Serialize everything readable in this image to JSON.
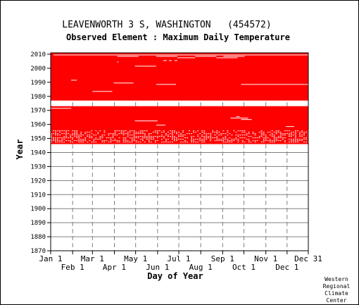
{
  "chart_data": {
    "type": "heatmap",
    "title": "LEAVENWORTH 3 S, WASHINGTON   (454572)",
    "subtitle": "Observed Element : Maximum Daily Temperature",
    "xlabel": "Day of Year",
    "ylabel": "Year",
    "x_ticks_top_row": [
      "Jan 1",
      "Mar 1",
      "May 1",
      "Jul 1",
      "Sep 1",
      "Nov 1",
      "Dec 31"
    ],
    "x_ticks_bottom_row": [
      "Feb 1",
      "Apr 1",
      "Jun 1",
      "Aug 1",
      "Oct 1",
      "Dec 1"
    ],
    "x_tick_days_top": [
      1,
      60,
      121,
      182,
      244,
      305,
      365
    ],
    "x_tick_days_bottom": [
      32,
      91,
      152,
      213,
      274,
      335
    ],
    "y_ticks": [
      1870,
      1880,
      1890,
      1900,
      1910,
      1920,
      1930,
      1940,
      1950,
      1960,
      1970,
      1980,
      1990,
      2000,
      2010
    ],
    "xlim": [
      1,
      365
    ],
    "ylim": [
      1870,
      2011
    ],
    "grid": true,
    "data_color": "#ff0000",
    "data_periods": [
      {
        "start_year": 1947,
        "end_year": 1973
      },
      {
        "start_year": 1978,
        "end_year": 2011
      }
    ],
    "missing_segments": [
      {
        "year": 2010,
        "start_day": 5,
        "end_day": 365
      },
      {
        "year": 2009,
        "start_day": 95,
        "end_day": 125
      },
      {
        "year": 2009,
        "start_day": 150,
        "end_day": 180
      },
      {
        "year": 2009,
        "start_day": 205,
        "end_day": 235
      },
      {
        "year": 2009,
        "start_day": 245,
        "end_day": 275
      },
      {
        "year": 2008,
        "start_day": 180,
        "end_day": 205
      },
      {
        "year": 2008,
        "start_day": 235,
        "end_day": 265
      },
      {
        "year": 2006,
        "start_day": 160,
        "end_day": 165
      },
      {
        "year": 2006,
        "start_day": 168,
        "end_day": 172
      },
      {
        "year": 2006,
        "start_day": 176,
        "end_day": 180
      },
      {
        "year": 2005,
        "start_day": 95,
        "end_day": 97
      },
      {
        "year": 2002,
        "start_day": 120,
        "end_day": 150
      },
      {
        "year": 1992,
        "start_day": 30,
        "end_day": 38
      },
      {
        "year": 1990,
        "start_day": 90,
        "end_day": 118
      },
      {
        "year": 1989,
        "start_day": 150,
        "end_day": 178
      },
      {
        "year": 1989,
        "start_day": 270,
        "end_day": 365
      },
      {
        "year": 1984,
        "start_day": 60,
        "end_day": 88
      },
      {
        "year": 1972,
        "start_day": 1,
        "end_day": 30
      },
      {
        "year": 1966,
        "start_day": 263,
        "end_day": 268
      },
      {
        "year": 1965,
        "start_day": 255,
        "end_day": 280
      },
      {
        "year": 1964,
        "start_day": 270,
        "end_day": 285
      },
      {
        "year": 1963,
        "start_day": 120,
        "end_day": 152
      },
      {
        "year": 1960,
        "start_day": 150,
        "end_day": 163
      },
      {
        "year": 1959,
        "start_day": 333,
        "end_day": 345
      }
    ],
    "sparse_years": [
      1948,
      1949,
      1950,
      1951,
      1952,
      1953,
      1954,
      1955,
      1956
    ],
    "credit": [
      "Western",
      "Regional",
      "Climate",
      "Center"
    ]
  }
}
